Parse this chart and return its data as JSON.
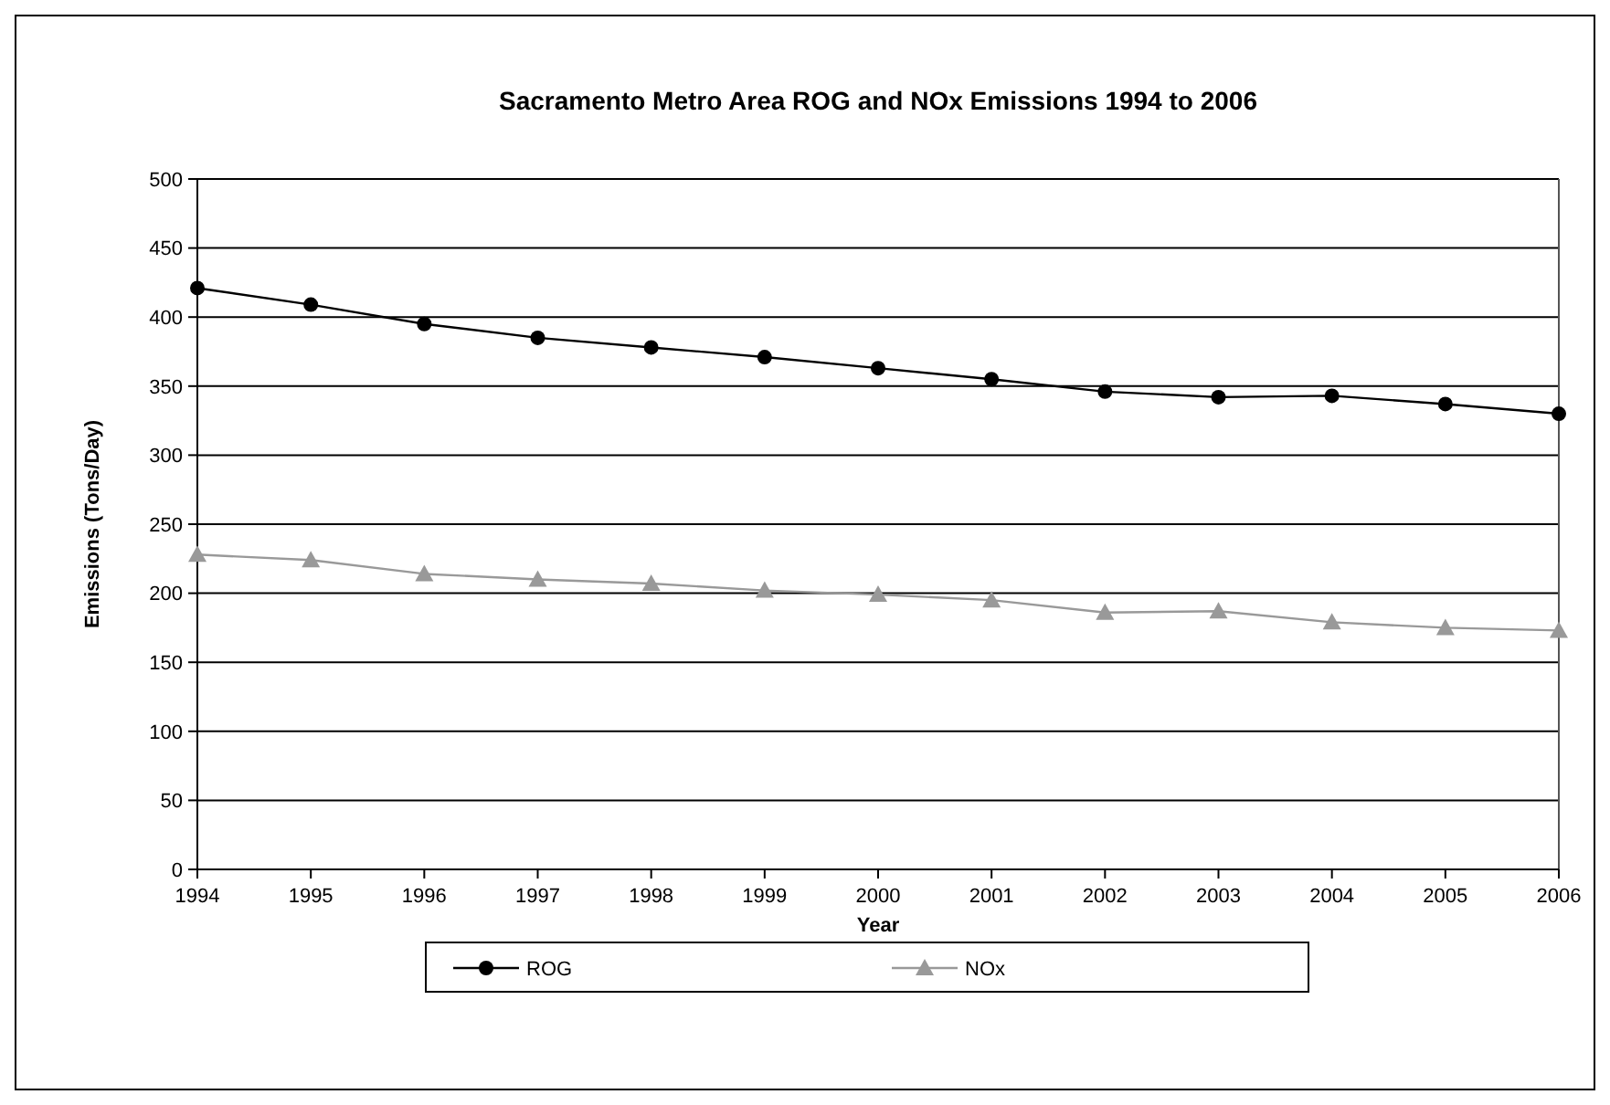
{
  "chart_data": {
    "type": "line",
    "title": "Sacramento Metro Area ROG and NOx Emissions 1994 to 2006",
    "xlabel": "Year",
    "ylabel": "Emissions (Tons/Day)",
    "x": [
      1994,
      1995,
      1996,
      1997,
      1998,
      1999,
      2000,
      2001,
      2002,
      2003,
      2004,
      2005,
      2006
    ],
    "xlim": [
      1994,
      2006
    ],
    "xticks": [
      1994,
      1995,
      1996,
      1997,
      1998,
      1999,
      2000,
      2001,
      2002,
      2003,
      2004,
      2005,
      2006
    ],
    "ylim": [
      0,
      500
    ],
    "yticks": [
      0,
      50,
      100,
      150,
      200,
      250,
      300,
      350,
      400,
      450,
      500
    ],
    "grid": "y",
    "legend": "bottom",
    "series": [
      {
        "name": "ROG",
        "color": "#000000",
        "marker": "circle",
        "values": [
          421,
          409,
          395,
          385,
          378,
          371,
          363,
          355,
          346,
          342,
          343,
          337,
          330
        ]
      },
      {
        "name": "NOx",
        "color": "#999999",
        "marker": "triangle",
        "values": [
          228,
          224,
          214,
          210,
          207,
          202,
          199,
          195,
          186,
          187,
          179,
          175,
          173
        ]
      }
    ]
  }
}
